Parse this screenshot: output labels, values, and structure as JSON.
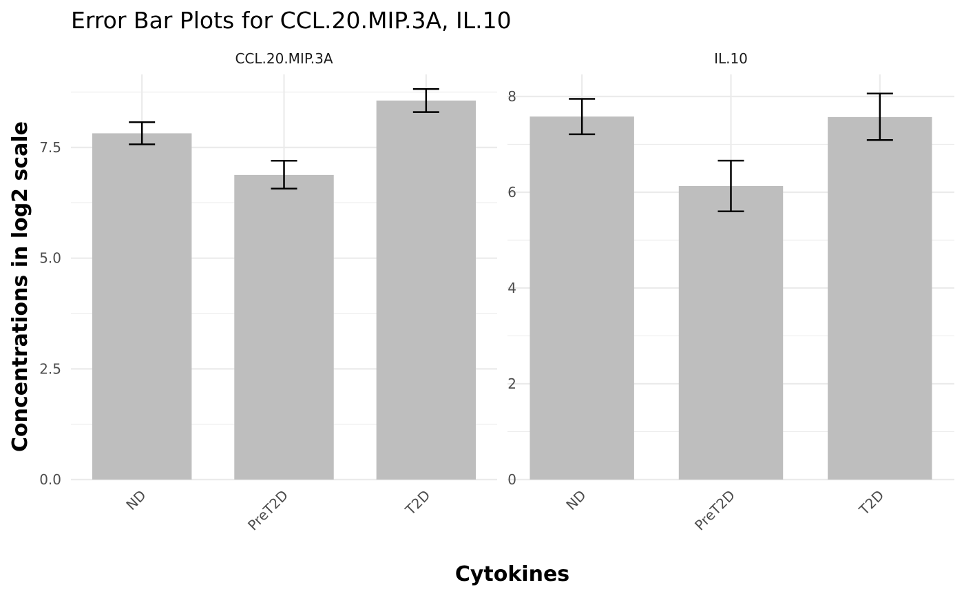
{
  "chart_data": {
    "type": "bar",
    "title": "Error Bar Plots for CCL.20.MIP.3A, IL.10",
    "xlabel": "Cytokines",
    "ylabel": "Concentrations in log2 scale",
    "bar_color": "#bebebe",
    "error_color": "#000000",
    "grid": true,
    "panels": [
      {
        "name": "CCL.20.MIP.3A",
        "categories": [
          "ND",
          "PreT2D",
          "T2D"
        ],
        "values": [
          7.82,
          6.88,
          8.56
        ],
        "error_low": [
          7.57,
          6.57,
          8.3
        ],
        "error_high": [
          8.07,
          7.2,
          8.82
        ],
        "ylim": [
          0,
          9.15
        ],
        "yticks": [
          0,
          2.5,
          5,
          7.5
        ],
        "ytick_labels": [
          "0.0",
          "2.5",
          "5.0",
          "7.5"
        ]
      },
      {
        "name": "IL.10",
        "categories": [
          "ND",
          "PreT2D",
          "T2D"
        ],
        "values": [
          7.58,
          6.13,
          7.57
        ],
        "error_low": [
          7.21,
          5.6,
          7.09
        ],
        "error_high": [
          7.95,
          6.66,
          8.06
        ],
        "ylim": [
          0,
          8.46
        ],
        "yticks": [
          0,
          2,
          4,
          6,
          8
        ],
        "ytick_labels": [
          "0",
          "2",
          "4",
          "6",
          "8"
        ]
      }
    ]
  }
}
